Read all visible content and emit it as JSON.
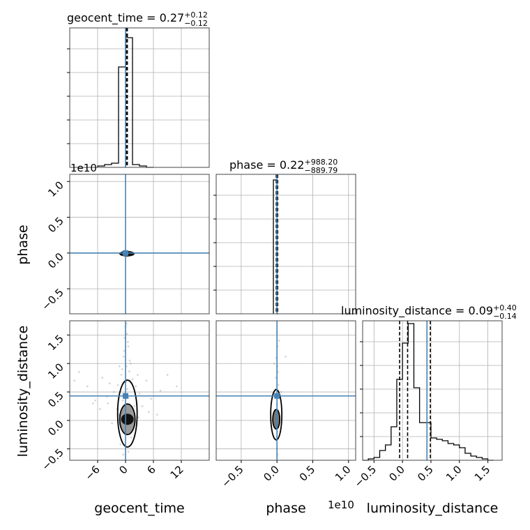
{
  "chart_data": {
    "type": "corner",
    "parameters": [
      "geocent_time",
      "phase",
      "luminosity_distance"
    ],
    "colors": {
      "truth": "#4682b4",
      "hist": "#000000",
      "grid": "#b0b0b0",
      "scatter": "#8c8c8c"
    },
    "titles": [
      {
        "name": "geocent_time",
        "value": "0.27",
        "plus": "+0.12",
        "minus": "−0.12"
      },
      {
        "name": "phase",
        "value": "0.22",
        "plus": "+988.20",
        "minus": "−889.79"
      },
      {
        "name": "luminosity_distance",
        "value": "0.09",
        "plus": "+0.40",
        "minus": "−0.14"
      }
    ],
    "offset_texts": [
      "1e10",
      "1e10"
    ],
    "truths": {
      "geocent_time": 0.0,
      "phase": 0.0,
      "luminosity_distance": 0.43
    },
    "axes": {
      "geocent_time": {
        "range": [
          -12,
          18
        ],
        "ticks": [
          -6,
          0,
          6,
          12
        ],
        "tick_labels": [
          "−6",
          "0",
          "6",
          "12"
        ]
      },
      "phase": {
        "range": [
          -0.85,
          1.1
        ],
        "ticks": [
          -0.5,
          0.0,
          0.5,
          1.0
        ],
        "tick_labels": [
          "−0.5",
          "0.0",
          "0.5",
          "1.0"
        ]
      },
      "luminosity_distance": {
        "range": [
          -0.7,
          1.75
        ],
        "ticks": [
          -0.5,
          0.0,
          0.5,
          1.0,
          1.5
        ],
        "tick_labels": [
          "−0.5",
          "0.0",
          "0.5",
          "1.0",
          "1.5"
        ]
      }
    },
    "diagonals": {
      "geocent_time": {
        "bin_edges": [
          -6,
          -4.5,
          -3,
          -1.5,
          0,
          1.5,
          3,
          4.5,
          6
        ],
        "counts": [
          0.01,
          0.02,
          0.03,
          0.72,
          0.93,
          0.02,
          0.01,
          0.0
        ],
        "quantiles": [
          0.15,
          0.27,
          0.39
        ],
        "ylim": [
          0,
          1.0
        ]
      },
      "phase": {
        "bin_edges": [
          -0.05,
          0.0,
          0.02
        ],
        "counts": [
          0.96,
          0.0
        ],
        "quantiles": [
          -0.01,
          0.0,
          0.01
        ],
        "ylim": [
          0,
          1.0
        ]
      },
      "luminosity_distance": {
        "bin_edges": [
          -0.7,
          -0.6,
          -0.5,
          -0.4,
          -0.3,
          -0.2,
          -0.1,
          0.0,
          0.1,
          0.2,
          0.3,
          0.4,
          0.5,
          0.6,
          0.7,
          0.8,
          0.9,
          1.0,
          1.1,
          1.2,
          1.3,
          1.4,
          1.5,
          1.6
        ],
        "counts": [
          0.0,
          0.01,
          0.02,
          0.07,
          0.11,
          0.24,
          0.58,
          0.84,
          0.98,
          0.52,
          0.27,
          0.27,
          0.16,
          0.15,
          0.14,
          0.12,
          0.11,
          0.09,
          0.05,
          0.03,
          0.02,
          0.01,
          0.0
        ],
        "quantiles": [
          -0.05,
          0.09,
          0.49
        ],
        "ylim": [
          0,
          1.0
        ]
      }
    },
    "scatter_samples": {
      "geocent_time_vs_luminosity_distance": [
        [
          0.3,
          1.52
        ],
        [
          0.6,
          1.3
        ],
        [
          -0.4,
          1.12
        ],
        [
          0.2,
          0.95
        ],
        [
          0.8,
          0.86
        ],
        [
          -0.9,
          0.8
        ],
        [
          1.5,
          0.72
        ],
        [
          0.1,
          0.68
        ],
        [
          -1.6,
          0.62
        ],
        [
          2.2,
          0.6
        ],
        [
          0.4,
          0.55
        ],
        [
          -2.5,
          0.5
        ],
        [
          3.0,
          0.47
        ],
        [
          -4.0,
          0.42
        ],
        [
          5.5,
          0.38
        ],
        [
          -6.5,
          0.35
        ],
        [
          7.5,
          0.52
        ],
        [
          -8.2,
          0.6
        ],
        [
          0.9,
          1.05
        ],
        [
          -0.3,
          1.22
        ],
        [
          0.5,
          1.38
        ],
        [
          -0.7,
          0.9
        ],
        [
          1.9,
          0.25
        ],
        [
          -1.8,
          0.2
        ],
        [
          2.8,
          0.05
        ],
        [
          -2.9,
          -0.05
        ],
        [
          1.2,
          -0.3
        ],
        [
          -1.1,
          -0.42
        ],
        [
          0.6,
          -0.55
        ],
        [
          -0.5,
          -0.6
        ],
        [
          4.5,
          0.7
        ],
        [
          -5.0,
          0.75
        ],
        [
          9.0,
          0.8
        ],
        [
          -10.0,
          0.85
        ],
        [
          6.8,
          0.1
        ],
        [
          -7.0,
          0.3
        ],
        [
          0.0,
          1.65
        ],
        [
          0.2,
          1.7
        ],
        [
          -0.2,
          1.45
        ],
        [
          1.1,
          1.0
        ],
        [
          -1.3,
          0.95
        ],
        [
          2.6,
          0.8
        ],
        [
          -3.4,
          0.65
        ],
        [
          11.0,
          0.6
        ],
        [
          -11.0,
          0.7
        ],
        [
          0.7,
          0.4
        ],
        [
          -0.6,
          0.35
        ],
        [
          1.4,
          0.15
        ],
        [
          -1.4,
          0.1
        ],
        [
          3.6,
          0.25
        ],
        [
          -3.8,
          0.3
        ],
        [
          5.0,
          0.15
        ],
        [
          -5.5,
          0.2
        ]
      ],
      "phase_vs_luminosity_distance": [
        [
          0.0,
          1.55
        ],
        [
          0.01,
          1.3
        ],
        [
          -0.01,
          1.1
        ],
        [
          0.005,
          0.95
        ],
        [
          0.015,
          0.85
        ],
        [
          -0.015,
          0.75
        ],
        [
          0.02,
          0.62
        ],
        [
          -0.02,
          0.55
        ],
        [
          0.0,
          0.28
        ],
        [
          0.01,
          0.18
        ],
        [
          -0.01,
          0.12
        ],
        [
          0.005,
          -0.2
        ],
        [
          -0.005,
          -0.35
        ],
        [
          0.0,
          -0.5
        ],
        [
          0.01,
          -0.6
        ],
        [
          0.06,
          0.5
        ],
        [
          -0.06,
          0.45
        ],
        [
          0.12,
          1.12
        ],
        [
          -0.04,
          1.0
        ],
        [
          0.03,
          1.4
        ]
      ]
    },
    "joint_markers": {
      "geocent_time_vs_phase": {
        "x": 0.0,
        "y": 0.0
      },
      "geocent_time_vs_luminosity_distance": {
        "x": 0.0,
        "y": 0.43
      },
      "phase_vs_luminosity_distance": {
        "x": 0.0,
        "y": 0.43
      }
    }
  }
}
